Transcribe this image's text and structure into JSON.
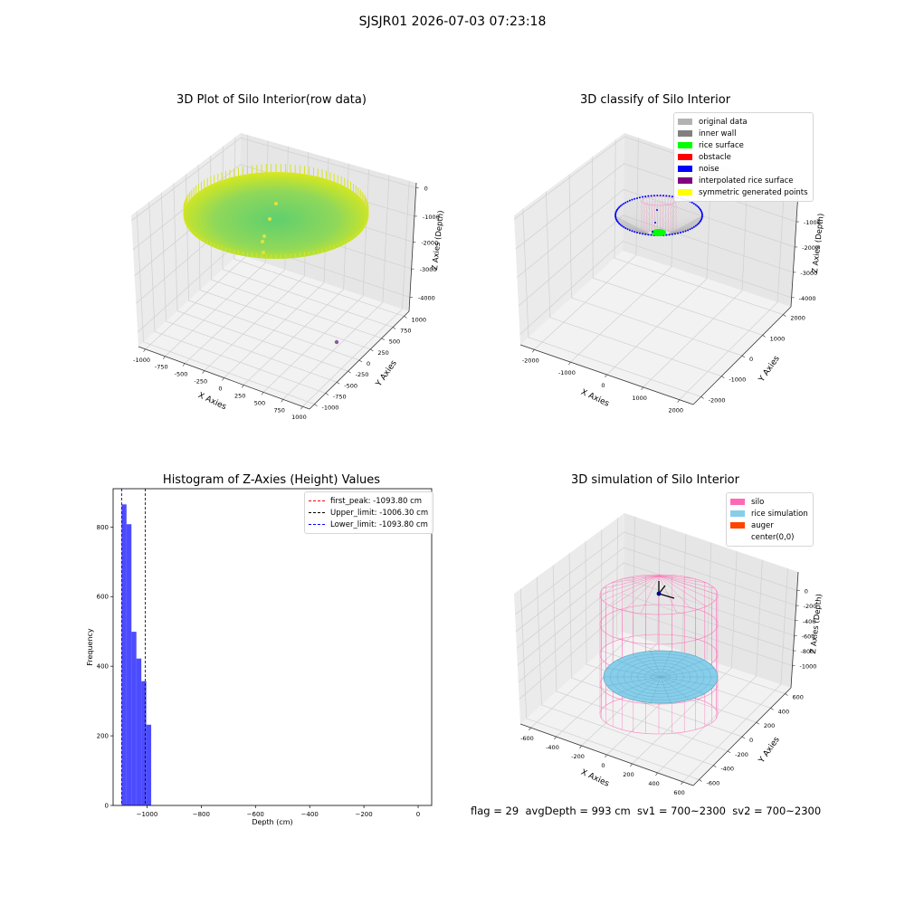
{
  "suptitle": "SJSJR01 2026-07-03 07:23:18",
  "footer": "flag = 29  avgDepth = 993 cm  sv1 = 700~2300  sv2 = 700~2300",
  "chart_data": [
    {
      "type": "scatter",
      "projection": "3d",
      "title": "3D Plot of Silo Interior(row data)",
      "xlabel": "X Axies",
      "ylabel": "Y Axies",
      "zlabel": "Z Axies (Depth)",
      "xticks": [
        "-1000",
        "-750",
        "-500",
        "-250",
        "0",
        "250",
        "500",
        "750",
        "1000"
      ],
      "yticks": [
        "-1000",
        "-750",
        "-500",
        "-250",
        "0",
        "250",
        "500",
        "750",
        "1000"
      ],
      "zticks": [
        "0",
        "-1000",
        "-2000",
        "-3000",
        "-4000"
      ],
      "xlim": [
        -1000,
        1000
      ],
      "ylim": [
        -1000,
        1000
      ],
      "zlim": [
        -4500,
        200
      ],
      "surface_depth": -1000,
      "colormap": "green center to yellow edge"
    },
    {
      "type": "scatter",
      "projection": "3d",
      "title": "3D classify of Silo Interior",
      "xlabel": "X Axies",
      "ylabel": "Y Axies",
      "zlabel": "Z Axies (Depth)",
      "xticks": [
        "-2000",
        "-1000",
        "0",
        "1000",
        "2000"
      ],
      "yticks": [
        "-2000",
        "-1000",
        "0",
        "1000",
        "2000"
      ],
      "zticks": [
        "0",
        "-1000",
        "-2000",
        "-3000",
        "-4000"
      ],
      "legend": [
        {
          "label": "original data",
          "color": "#b3b3b3"
        },
        {
          "label": "inner wall",
          "color": "#808080"
        },
        {
          "label": "rice surface",
          "color": "#00ff00"
        },
        {
          "label": "obstacle",
          "color": "#ff0000"
        },
        {
          "label": "noise",
          "color": "#0000ff"
        },
        {
          "label": "interpolated rice surface",
          "color": "#800080"
        },
        {
          "label": "symmetric generated points",
          "color": "#ffff00"
        }
      ]
    },
    {
      "type": "bar",
      "title": "Histogram of Z-Axies (Height) Values",
      "xlabel": "Depth (cm)",
      "ylabel": "Frequency",
      "xlim": [
        -1125,
        50
      ],
      "ylim": [
        0,
        910
      ],
      "xticks": [
        -1000,
        -800,
        -600,
        -400,
        -200,
        0
      ],
      "yticks": [
        0,
        200,
        400,
        600,
        800
      ],
      "bar_color": "#0000ff",
      "bins": [
        {
          "start": -1093.8,
          "end": -1075.6,
          "count": 865
        },
        {
          "start": -1075.6,
          "end": -1057.4,
          "count": 808
        },
        {
          "start": -1057.4,
          "end": -1039.2,
          "count": 499
        },
        {
          "start": -1039.2,
          "end": -1021.0,
          "count": 422
        },
        {
          "start": -1021.0,
          "end": -1002.8,
          "count": 357
        },
        {
          "start": -1002.8,
          "end": -984.6,
          "count": 232
        }
      ],
      "lines": [
        {
          "label": "first_peak: -1093.80 cm",
          "value": -1093.8,
          "color": "#ff0000"
        },
        {
          "label": "Upper_limit: -1006.30 cm",
          "value": -1006.3,
          "color": "#000000"
        },
        {
          "label": "Lower_limit: -1093.80 cm",
          "value": -1093.8,
          "color": "#0000ff"
        }
      ]
    },
    {
      "type": "surface",
      "projection": "3d",
      "title": "3D simulation of Silo Interior",
      "xlabel": "X Axies",
      "ylabel": "Y Axies",
      "zlabel": "Z Axies (Depth)",
      "xticks": [
        "-600",
        "-400",
        "-200",
        "0",
        "200",
        "400",
        "600"
      ],
      "yticks": [
        "-600",
        "-400",
        "-200",
        "0",
        "200",
        "400",
        "600"
      ],
      "zticks": [
        "0",
        "-200",
        "-400",
        "-600",
        "-800",
        "-1000"
      ],
      "legend": [
        {
          "label": "silo",
          "color": "#ff69b4"
        },
        {
          "label": "rice simulation",
          "color": "#87ceeb"
        },
        {
          "label": "auger",
          "color": "#ff4500"
        },
        {
          "label": "center(0,0)",
          "color": ""
        }
      ]
    }
  ]
}
